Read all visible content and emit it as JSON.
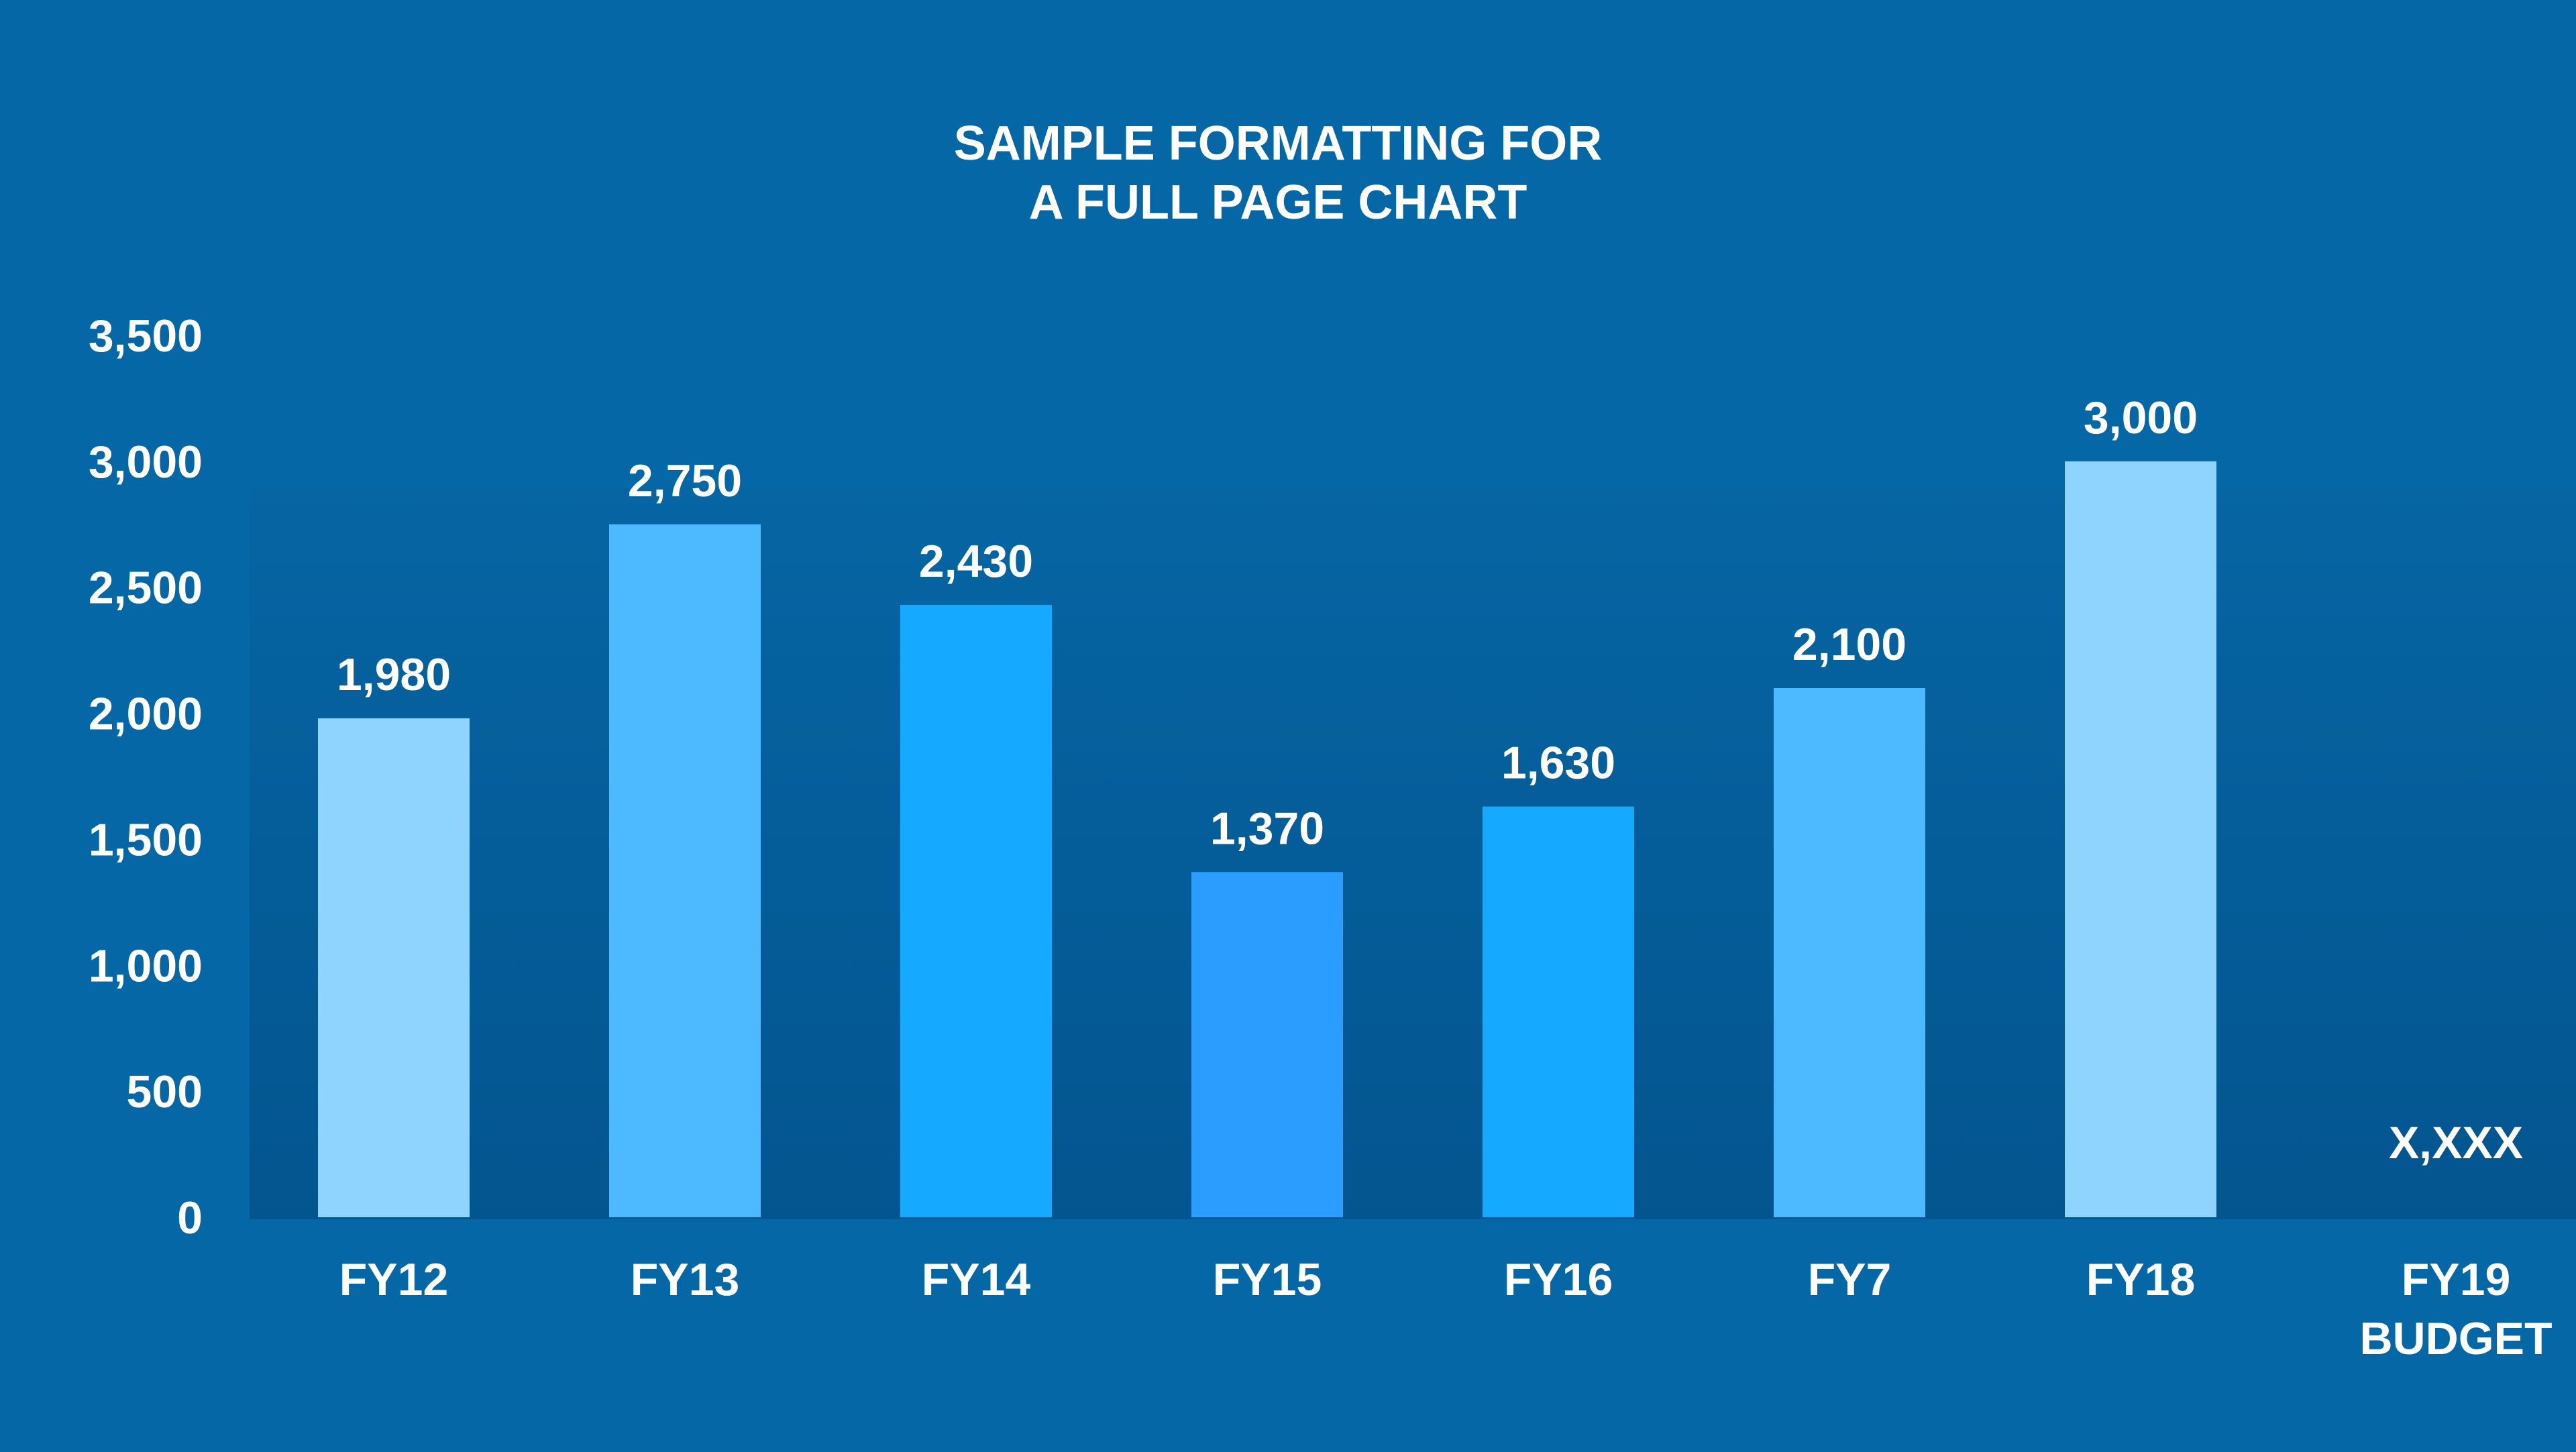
{
  "chart_data": {
    "type": "bar",
    "title": [
      "SAMPLE FORMATTING FOR",
      "A FULL PAGE CHART"
    ],
    "categories": [
      [
        "FY12"
      ],
      [
        "FY13"
      ],
      [
        "FY14"
      ],
      [
        "FY15"
      ],
      [
        "FY16"
      ],
      [
        "FY7"
      ],
      [
        "FY18"
      ],
      [
        "FY19",
        "BUDGET"
      ]
    ],
    "values": [
      1980,
      2750,
      2430,
      1370,
      1630,
      2100,
      3000,
      null
    ],
    "value_labels": [
      "1,980",
      "2,750",
      "2,430",
      "1,370",
      "1,630",
      "2,100",
      "3,000",
      "X,XXX"
    ],
    "bar_colors": [
      "#8fd3ff",
      "#4dbaff",
      "#15aaff",
      "#2b9dff",
      "#15aaff",
      "#4dbaff",
      "#8fd3ff",
      "#8fd3ff"
    ],
    "ylim": [
      0,
      3500
    ],
    "yticks": [
      0,
      500,
      1000,
      1500,
      2000,
      2500,
      3000,
      3500
    ],
    "ytick_labels": [
      "0",
      "500",
      "1,000",
      "1,500",
      "2,000",
      "2,500",
      "3,000",
      "3,500"
    ],
    "xlabel": "",
    "ylabel": "",
    "grid": false,
    "legend": false,
    "colors": {
      "background": "#0567a6",
      "plot_top": "#0665a3",
      "plot_bottom": "#03558f",
      "text": "#ffffff"
    }
  }
}
